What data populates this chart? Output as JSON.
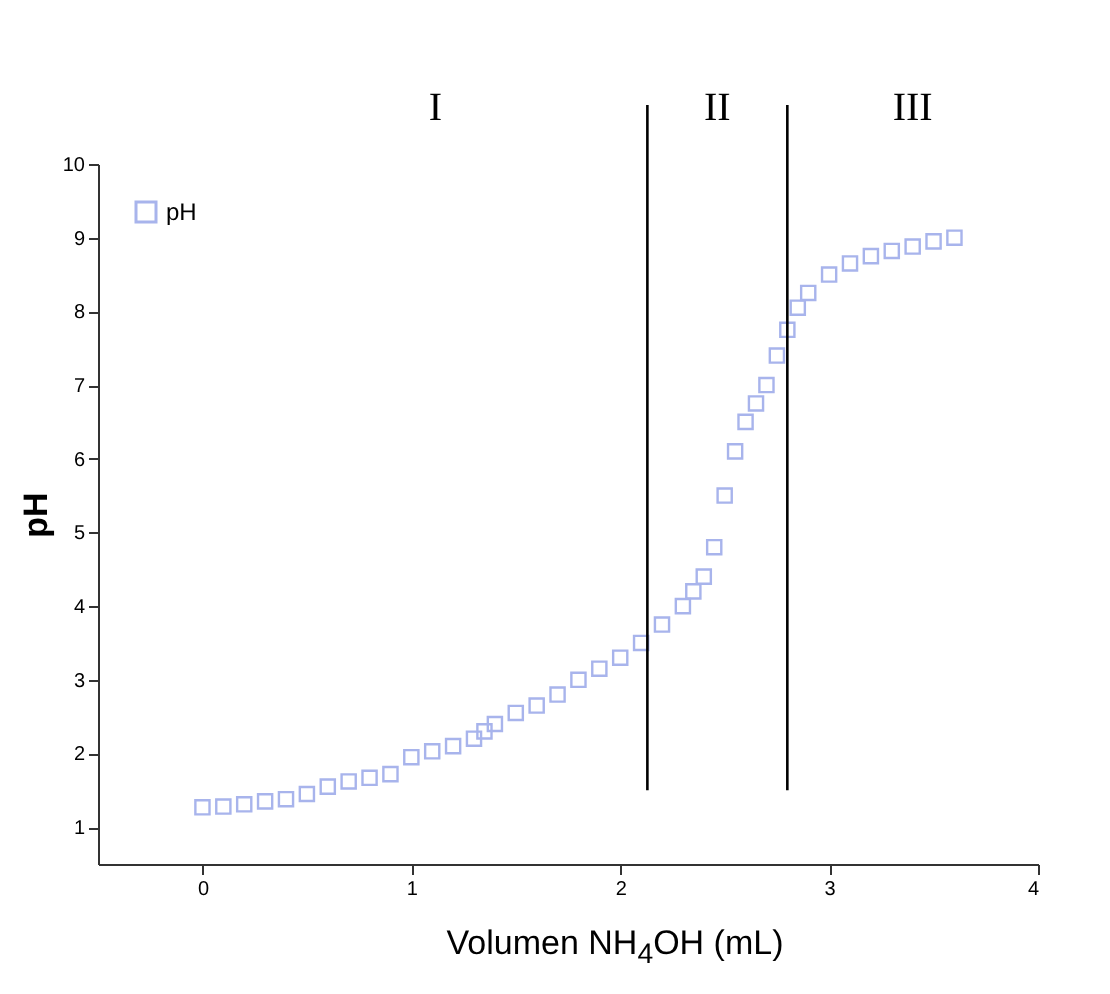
{
  "chart_data": {
    "type": "scatter",
    "xlabel": "Volumen NH$_{4}$OH (mL)",
    "ylabel": "pH",
    "xlim": [
      -0.5,
      4
    ],
    "ylim": [
      0.5,
      10
    ],
    "xticks": [
      0,
      1,
      2,
      3,
      4
    ],
    "yticks": [
      1,
      2,
      3,
      4,
      5,
      6,
      7,
      8,
      9,
      10
    ],
    "marker": "square",
    "legend": "top left",
    "grid": false,
    "series": [
      {
        "name": "pH",
        "color": "#a8b4ec",
        "x": [
          0,
          0.1,
          0.2,
          0.3,
          0.4,
          0.5,
          0.6,
          0.7,
          0.8,
          0.9,
          1.0,
          1.1,
          1.2,
          1.3,
          1.35,
          1.4,
          1.5,
          1.6,
          1.7,
          1.8,
          1.9,
          2.0,
          2.1,
          2.2,
          2.3,
          2.35,
          2.4,
          2.45,
          2.5,
          2.55,
          2.6,
          2.65,
          2.7,
          2.75,
          2.8,
          2.85,
          2.9,
          3.0,
          3.1,
          3.2,
          3.3,
          3.4,
          3.5,
          3.6
        ],
        "values": [
          1.27,
          1.28,
          1.31,
          1.35,
          1.38,
          1.45,
          1.55,
          1.62,
          1.67,
          1.72,
          1.95,
          2.03,
          2.1,
          2.2,
          2.3,
          2.4,
          2.55,
          2.65,
          2.8,
          3.0,
          3.15,
          3.3,
          3.5,
          3.75,
          4.0,
          4.2,
          4.4,
          4.8,
          5.5,
          6.1,
          6.5,
          6.75,
          7.0,
          7.4,
          7.75,
          8.05,
          8.25,
          8.5,
          8.65,
          8.75,
          8.82,
          8.88,
          8.95,
          9.0
        ]
      }
    ],
    "ref_lines": [
      {
        "axis": "x",
        "value": 2.13
      },
      {
        "axis": "x",
        "value": 2.8
      }
    ],
    "annotations": [
      "I",
      "II",
      "III"
    ]
  }
}
